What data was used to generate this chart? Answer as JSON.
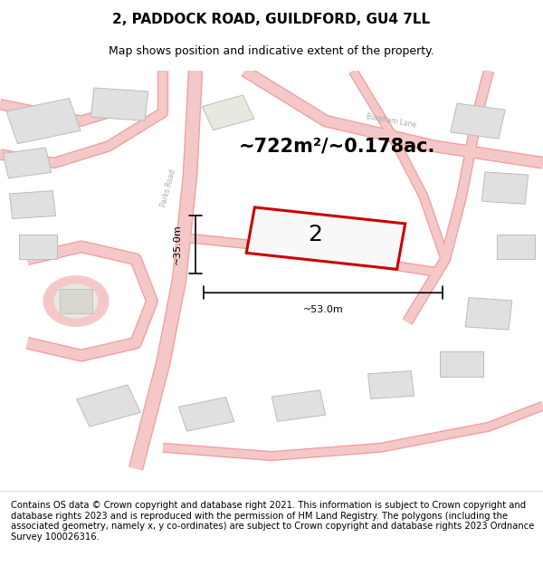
{
  "title": "2, PADDOCK ROAD, GUILDFORD, GU4 7LL",
  "subtitle": "Map shows position and indicative extent of the property.",
  "area_label": "~722m²/~0.178ac.",
  "plot_number": "2",
  "width_label": "~53.0m",
  "height_label": "~35.0m",
  "footer": "Contains OS data © Crown copyright and database right 2021. This information is subject to Crown copyright and database rights 2023 and is reproduced with the permission of HM Land Registry. The polygons (including the associated geometry, namely x, y co-ordinates) are subject to Crown copyright and database rights 2023 Ordnance Survey 100026316.",
  "bg_color": "#ffffff",
  "map_bg": "#f5f5f0",
  "road_color": "#f5c8c8",
  "road_stroke": "#f0a0a0",
  "building_fill": "#e0e0e0",
  "building_stroke": "#bbbbbb",
  "highlight_fill": "#f0f0f0",
  "highlight_stroke": "#cc0000",
  "dim_color": "#111111",
  "title_fontsize": 11,
  "subtitle_fontsize": 9,
  "area_fontsize": 15,
  "footer_fontsize": 7.2,
  "road_label_color": "#aaaaaa"
}
